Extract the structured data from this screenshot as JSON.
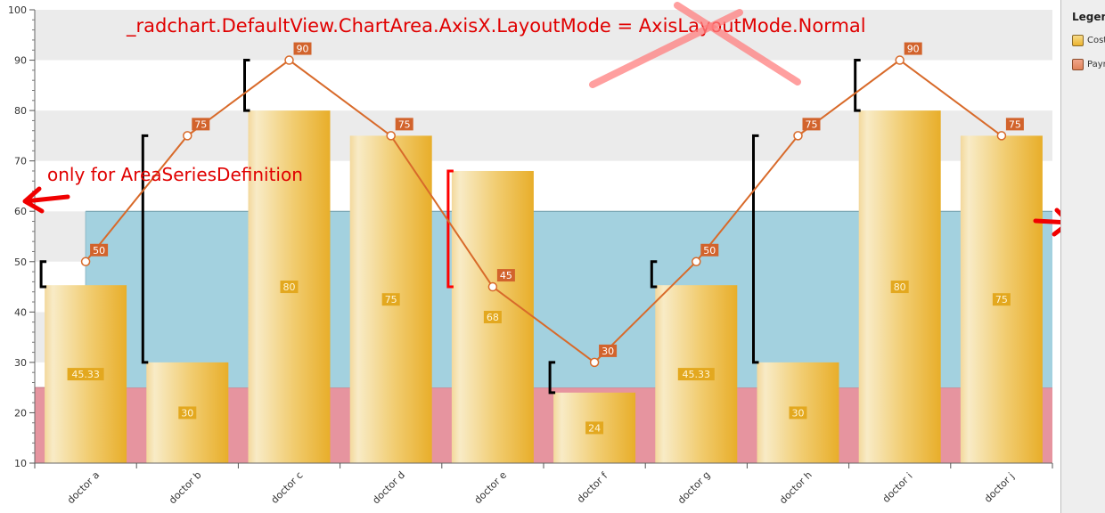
{
  "chart_data": {
    "type": "bar",
    "title": "",
    "xlabel": "",
    "ylabel": "",
    "ylim": [
      10,
      100
    ],
    "yticks": [
      10,
      20,
      30,
      40,
      50,
      60,
      70,
      80,
      90,
      100
    ],
    "grid": "alternating horizontal stripes",
    "categories": [
      "doctor a",
      "doctor b",
      "doctor c",
      "doctor d",
      "doctor e",
      "doctor f",
      "doctor g",
      "doctor h",
      "doctor i",
      "doctor j"
    ],
    "bars": {
      "values": [
        45.33,
        30,
        80,
        75,
        68,
        24,
        45.33,
        30,
        80,
        75
      ],
      "labels": [
        "45.33",
        "30",
        "80",
        "75",
        "68",
        "24",
        "45.33",
        "30",
        "80",
        "75"
      ],
      "color": "#ebb22e"
    },
    "line": {
      "values": [
        50,
        75,
        90,
        75,
        45,
        30,
        50,
        75,
        90,
        75
      ],
      "labels": [
        "50",
        "75",
        "90",
        "75",
        "45",
        "30",
        "50",
        "75",
        "90",
        "75"
      ],
      "color": "#d86a2a"
    },
    "error_bars": [
      {
        "low": 45,
        "high": 50,
        "color": "#000000"
      },
      {
        "low": 30,
        "high": 75,
        "color": "#000000"
      },
      {
        "low": 80,
        "high": 90,
        "color": "#000000"
      },
      null,
      {
        "low": 45,
        "high": 68,
        "color": "#ff0000"
      },
      {
        "low": 24,
        "high": 30,
        "color": "#000000"
      },
      {
        "low": 45,
        "high": 50,
        "color": "#000000"
      },
      {
        "low": 30,
        "high": 75,
        "color": "#000000"
      },
      {
        "low": 80,
        "high": 90,
        "color": "#000000"
      },
      null
    ],
    "areas": [
      {
        "from": 10,
        "to": 25,
        "color": "#e6949f"
      },
      {
        "from": 25,
        "to": 60,
        "color": "#a3d1df"
      }
    ],
    "annotations": {
      "top_text": "_radchart.DefaultView.ChartArea.AxisX.LayoutMode = AxisLayoutMode.Normal",
      "left_text": "only for AreaSeriesDefinition",
      "color": "#e00000"
    }
  },
  "legend": {
    "title": "Legend",
    "items": [
      {
        "label": "Cost",
        "color": "#ebb22e"
      },
      {
        "label": "Payment",
        "color": "#e0825a"
      }
    ]
  }
}
